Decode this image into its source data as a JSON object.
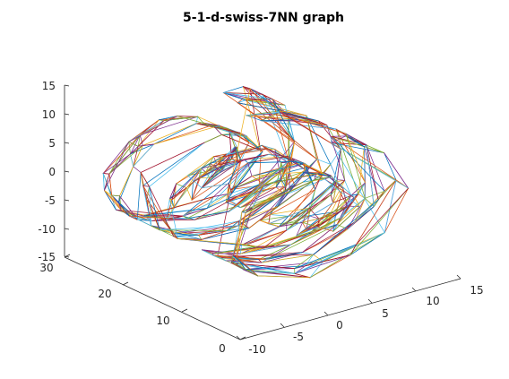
{
  "chart_data": {
    "type": "graph3d",
    "title": "5-1-d-swiss-7NN graph",
    "x_ticks": [
      "-10",
      "-5",
      "0",
      "5",
      "10",
      "15"
    ],
    "y_ticks": [
      "0",
      "10",
      "20",
      "30"
    ],
    "z_ticks": [
      "15",
      "10",
      "5",
      "0",
      "-5",
      "-10",
      "-15"
    ],
    "xlim": [
      -10,
      15
    ],
    "ylim": [
      0,
      30
    ],
    "zlim": [
      -15,
      15
    ],
    "grid": false,
    "edge_colors": [
      "#0072BD",
      "#D95319",
      "#EDB120",
      "#7E2F8E",
      "#77AC30",
      "#4DBEEE",
      "#A2142F"
    ]
  }
}
